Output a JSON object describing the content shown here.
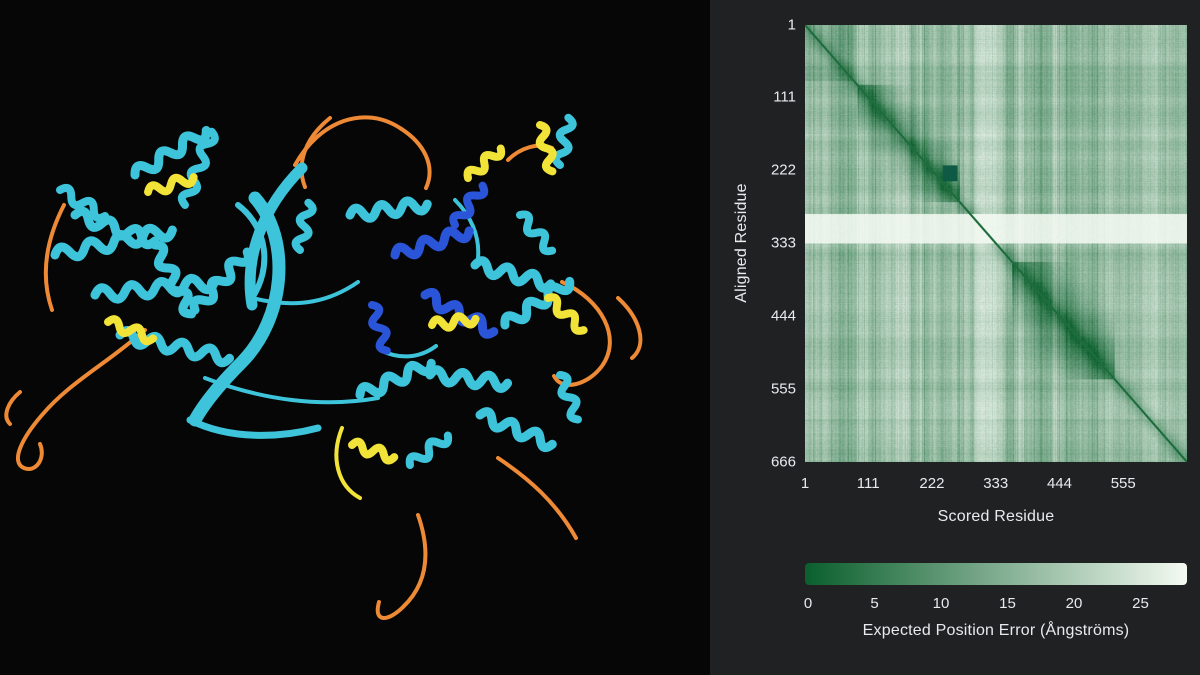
{
  "structure_viewer": {
    "background": "#060606",
    "plddt_colors": {
      "very_high": "#2b55d8",
      "confident": "#3dc3da",
      "low": "#f2e338",
      "very_low": "#ee8a35"
    }
  },
  "pae_panel": {
    "background": "#1f2123",
    "text_color": "#e8eaed",
    "ylabel": "Aligned Residue",
    "xlabel": "Scored Residue",
    "y_ticks": [
      "1",
      "111",
      "222",
      "333",
      "444",
      "555",
      "666"
    ],
    "x_ticks": [
      "1",
      "111",
      "222",
      "333",
      "444",
      "555"
    ],
    "colorbar_ticks": [
      "0",
      "5",
      "10",
      "15",
      "20",
      "25"
    ],
    "colorbar_label": "Expected Position Error (Ångströms)"
  },
  "chart_data": {
    "type": "heatmap",
    "xlabel": "Scored Residue",
    "ylabel": "Aligned Residue",
    "x_range": [
      1,
      666
    ],
    "y_range": [
      1,
      666
    ],
    "x_ticks": [
      1,
      111,
      222,
      333,
      444,
      555
    ],
    "y_ticks": [
      1,
      111,
      222,
      333,
      444,
      555,
      666
    ],
    "value_label": "Expected Position Error (Ångströms)",
    "value_range": [
      0,
      28.5
    ],
    "colorbar_ticks": [
      0,
      5,
      10,
      15,
      20,
      25
    ],
    "color_low_error": "#0a5f2d",
    "color_high_error": "#f4faf2",
    "legend_position": "bottom",
    "grid": false,
    "pattern": {
      "diagonal": "low error (dark green) along the main diagonal",
      "low_error_blocks_near_diagonal": [
        [
          90,
          270
        ],
        [
          360,
          540
        ]
      ],
      "high_error_row_bands": [
        [
          288,
          332
        ],
        [
          575,
          600
        ]
      ],
      "high_error_col_bands": [
        [
          295,
          332
        ],
        [
          588,
          615
        ]
      ],
      "marker_block": {
        "scored": [
          240,
          266
        ],
        "aligned": [
          214,
          238
        ]
      },
      "texture": "column-wise vertical striping, typical error 8-28 Å off-diagonal"
    }
  }
}
